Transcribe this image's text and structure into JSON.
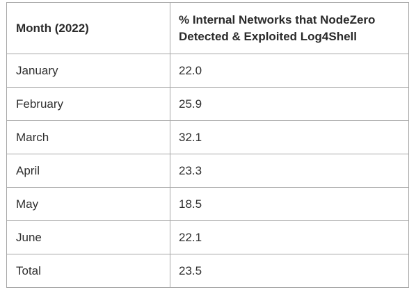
{
  "chart_data": {
    "type": "table",
    "columns": [
      "Month (2022)",
      "% Internal Networks that NodeZero Detected & Exploited Log4Shell"
    ],
    "rows": [
      {
        "month": "January",
        "value": "22.0"
      },
      {
        "month": "February",
        "value": "25.9"
      },
      {
        "month": "March",
        "value": "32.1"
      },
      {
        "month": "April",
        "value": "23.3"
      },
      {
        "month": "May",
        "value": "18.5"
      },
      {
        "month": "June",
        "value": "22.1"
      },
      {
        "month": "Total",
        "value": "23.5"
      }
    ]
  }
}
